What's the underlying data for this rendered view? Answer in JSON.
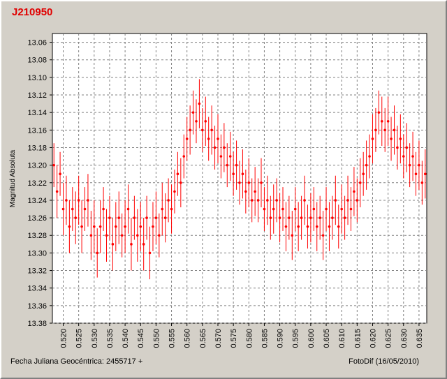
{
  "chart_data": {
    "type": "scatter",
    "title": "J210950",
    "xlabel": "Fecha Juliana Geocéntrica: 2455717 +",
    "ylabel": "Magnitud Absoluta",
    "credit": "FotoDif (16/05/2010)",
    "xlim": [
      0.5165,
      0.6375
    ],
    "ylim": [
      13.05,
      13.38
    ],
    "y_inverted": true,
    "grid": true,
    "marker_color": "#ff0000",
    "x_ticks": [
      "0.520",
      "0.525",
      "0.530",
      "0.535",
      "0.540",
      "0.545",
      "0.550",
      "0.555",
      "0.560",
      "0.565",
      "0.570",
      "0.575",
      "0.580",
      "0.585",
      "0.590",
      "0.595",
      "0.600",
      "0.605",
      "0.610",
      "0.615",
      "0.620",
      "0.625",
      "0.630",
      "0.635"
    ],
    "y_ticks": [
      "13.06",
      "13.08",
      "13.10",
      "13.12",
      "13.14",
      "13.16",
      "13.18",
      "13.20",
      "13.22",
      "13.24",
      "13.26",
      "13.28",
      "13.30",
      "13.32",
      "13.34",
      "13.36",
      "13.38"
    ],
    "series": [
      {
        "points": [
          [
            0.517,
            13.2,
            0.025
          ],
          [
            0.518,
            13.23,
            0.03
          ],
          [
            0.519,
            13.21,
            0.025
          ],
          [
            0.52,
            13.25,
            0.03
          ],
          [
            0.521,
            13.24,
            0.028
          ],
          [
            0.522,
            13.27,
            0.03
          ],
          [
            0.523,
            13.25,
            0.025
          ],
          [
            0.524,
            13.26,
            0.03
          ],
          [
            0.525,
            13.24,
            0.028
          ],
          [
            0.526,
            13.27,
            0.03
          ],
          [
            0.527,
            13.25,
            0.025
          ],
          [
            0.528,
            13.24,
            0.03
          ],
          [
            0.529,
            13.28,
            0.028
          ],
          [
            0.53,
            13.27,
            0.03
          ],
          [
            0.531,
            13.3,
            0.028
          ],
          [
            0.532,
            13.27,
            0.03
          ],
          [
            0.533,
            13.25,
            0.025
          ],
          [
            0.534,
            13.28,
            0.03
          ],
          [
            0.535,
            13.26,
            0.025
          ],
          [
            0.536,
            13.29,
            0.03
          ],
          [
            0.537,
            13.27,
            0.028
          ],
          [
            0.538,
            13.26,
            0.03
          ],
          [
            0.539,
            13.28,
            0.025
          ],
          [
            0.54,
            13.27,
            0.03
          ],
          [
            0.541,
            13.25,
            0.028
          ],
          [
            0.542,
            13.29,
            0.03
          ],
          [
            0.543,
            13.26,
            0.025
          ],
          [
            0.544,
            13.28,
            0.03
          ],
          [
            0.545,
            13.27,
            0.028
          ],
          [
            0.546,
            13.29,
            0.03
          ],
          [
            0.547,
            13.26,
            0.025
          ],
          [
            0.548,
            13.3,
            0.03
          ],
          [
            0.549,
            13.27,
            0.028
          ],
          [
            0.55,
            13.26,
            0.03
          ],
          [
            0.551,
            13.28,
            0.025
          ],
          [
            0.552,
            13.25,
            0.03
          ],
          [
            0.553,
            13.26,
            0.028
          ],
          [
            0.554,
            13.24,
            0.025
          ],
          [
            0.555,
            13.25,
            0.028
          ],
          [
            0.556,
            13.23,
            0.025
          ],
          [
            0.557,
            13.21,
            0.025
          ],
          [
            0.558,
            13.22,
            0.028
          ],
          [
            0.559,
            13.19,
            0.025
          ],
          [
            0.56,
            13.17,
            0.025
          ],
          [
            0.561,
            13.16,
            0.028
          ],
          [
            0.562,
            13.14,
            0.025
          ],
          [
            0.563,
            13.15,
            0.025
          ],
          [
            0.564,
            13.13,
            0.028
          ],
          [
            0.565,
            13.16,
            0.025
          ],
          [
            0.566,
            13.15,
            0.028
          ],
          [
            0.567,
            13.17,
            0.025
          ],
          [
            0.568,
            13.16,
            0.028
          ],
          [
            0.569,
            13.18,
            0.025
          ],
          [
            0.57,
            13.17,
            0.028
          ],
          [
            0.571,
            13.19,
            0.025
          ],
          [
            0.572,
            13.18,
            0.028
          ],
          [
            0.573,
            13.2,
            0.025
          ],
          [
            0.574,
            13.19,
            0.028
          ],
          [
            0.575,
            13.21,
            0.025
          ],
          [
            0.576,
            13.2,
            0.028
          ],
          [
            0.577,
            13.22,
            0.025
          ],
          [
            0.578,
            13.21,
            0.028
          ],
          [
            0.579,
            13.23,
            0.025
          ],
          [
            0.58,
            13.22,
            0.028
          ],
          [
            0.581,
            13.24,
            0.025
          ],
          [
            0.582,
            13.23,
            0.028
          ],
          [
            0.583,
            13.24,
            0.025
          ],
          [
            0.584,
            13.22,
            0.028
          ],
          [
            0.585,
            13.25,
            0.025
          ],
          [
            0.586,
            13.24,
            0.028
          ],
          [
            0.587,
            13.26,
            0.025
          ],
          [
            0.588,
            13.25,
            0.028
          ],
          [
            0.589,
            13.24,
            0.025
          ],
          [
            0.59,
            13.26,
            0.028
          ],
          [
            0.591,
            13.25,
            0.025
          ],
          [
            0.592,
            13.27,
            0.028
          ],
          [
            0.593,
            13.26,
            0.025
          ],
          [
            0.594,
            13.28,
            0.028
          ],
          [
            0.595,
            13.25,
            0.025
          ],
          [
            0.596,
            13.27,
            0.028
          ],
          [
            0.597,
            13.26,
            0.025
          ],
          [
            0.598,
            13.24,
            0.028
          ],
          [
            0.599,
            13.27,
            0.025
          ],
          [
            0.6,
            13.26,
            0.028
          ],
          [
            0.601,
            13.25,
            0.025
          ],
          [
            0.602,
            13.27,
            0.028
          ],
          [
            0.603,
            13.26,
            0.025
          ],
          [
            0.604,
            13.28,
            0.028
          ],
          [
            0.605,
            13.25,
            0.025
          ],
          [
            0.606,
            13.27,
            0.028
          ],
          [
            0.607,
            13.26,
            0.025
          ],
          [
            0.608,
            13.24,
            0.028
          ],
          [
            0.609,
            13.27,
            0.025
          ],
          [
            0.61,
            13.25,
            0.028
          ],
          [
            0.611,
            13.26,
            0.025
          ],
          [
            0.612,
            13.24,
            0.028
          ],
          [
            0.613,
            13.25,
            0.025
          ],
          [
            0.614,
            13.23,
            0.028
          ],
          [
            0.615,
            13.24,
            0.025
          ],
          [
            0.616,
            13.22,
            0.028
          ],
          [
            0.617,
            13.21,
            0.025
          ],
          [
            0.618,
            13.2,
            0.028
          ],
          [
            0.619,
            13.19,
            0.025
          ],
          [
            0.62,
            13.17,
            0.028
          ],
          [
            0.621,
            13.16,
            0.025
          ],
          [
            0.622,
            13.14,
            0.025
          ],
          [
            0.623,
            13.15,
            0.028
          ],
          [
            0.624,
            13.16,
            0.025
          ],
          [
            0.625,
            13.15,
            0.028
          ],
          [
            0.626,
            13.17,
            0.025
          ],
          [
            0.627,
            13.16,
            0.028
          ],
          [
            0.628,
            13.18,
            0.025
          ],
          [
            0.629,
            13.17,
            0.028
          ],
          [
            0.63,
            13.19,
            0.025
          ],
          [
            0.631,
            13.18,
            0.028
          ],
          [
            0.632,
            13.2,
            0.025
          ],
          [
            0.633,
            13.19,
            0.028
          ],
          [
            0.634,
            13.21,
            0.025
          ],
          [
            0.635,
            13.2,
            0.028
          ],
          [
            0.636,
            13.22,
            0.025
          ],
          [
            0.637,
            13.21,
            0.028
          ]
        ]
      }
    ]
  }
}
